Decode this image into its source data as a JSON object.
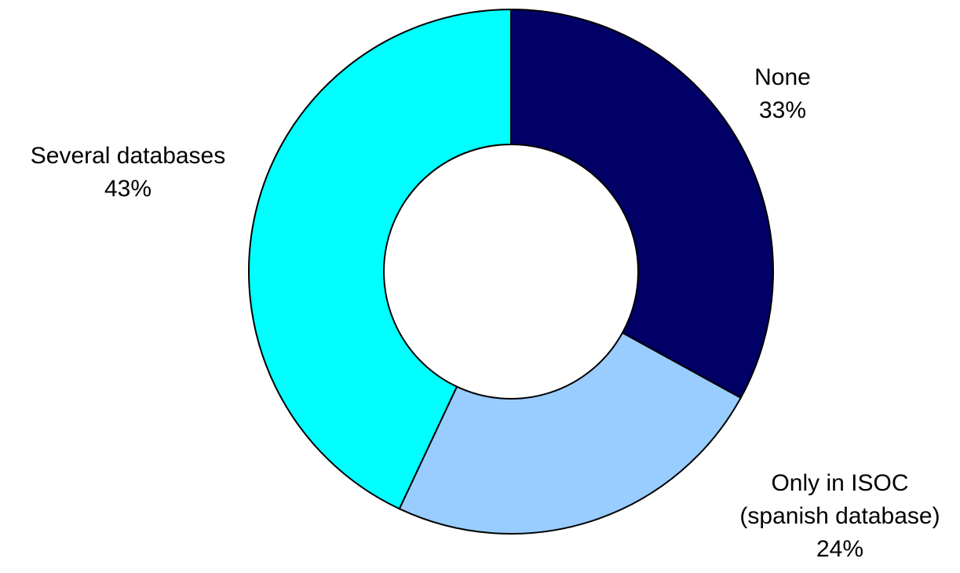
{
  "chart_data": {
    "type": "pie",
    "variant": "donut",
    "title": "",
    "legend": "none",
    "slices": [
      {
        "name": "None",
        "value": 33,
        "percent_label": "33%",
        "label_lines": [
          "None",
          "33%"
        ],
        "color": "#000066"
      },
      {
        "name": "Only in ISOC (spanish database)",
        "value": 24,
        "percent_label": "24%",
        "label_lines": [
          "Only in ISOC",
          "(spanish database)",
          "24%"
        ],
        "color": "#99CCFF"
      },
      {
        "name": "Several databases",
        "value": 43,
        "percent_label": "43%",
        "label_lines": [
          "Several databases",
          "43%"
        ],
        "color": "#00FFFF"
      }
    ]
  }
}
